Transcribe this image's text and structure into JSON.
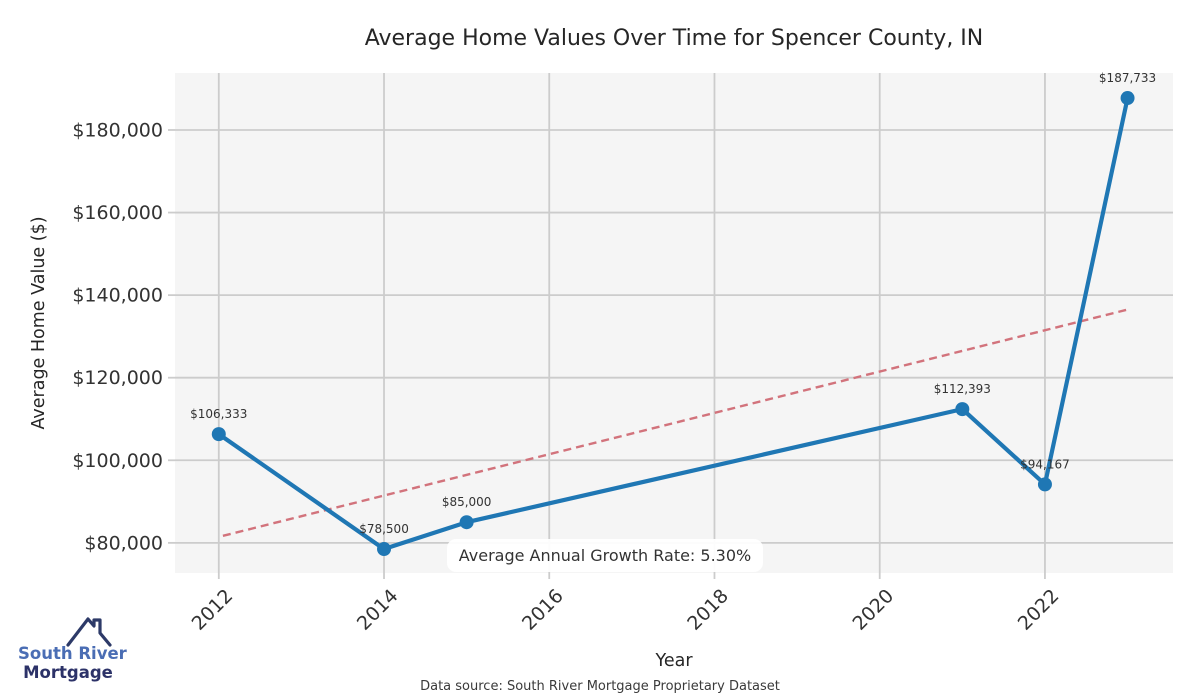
{
  "page": {
    "footer": "Data source: South River Mortgage Proprietary Dataset"
  },
  "logo": {
    "line1": "South River",
    "line2": "Mortgage",
    "icon": "house-roof-icon",
    "colors": {
      "roof": "#2d3a68",
      "line1": "#4a6db4",
      "line2": "#2c3268"
    }
  },
  "chart_data": {
    "type": "line",
    "title": "Average Home Values Over Time for Spencer County, IN",
    "xlabel": "Year",
    "ylabel": "Average Home Value ($)",
    "x": [
      2012,
      2014,
      2015,
      2021,
      2022,
      2023
    ],
    "values": [
      106333,
      78500,
      85000,
      112393,
      94167,
      187733
    ],
    "point_labels": [
      "$106,333",
      "$78,500",
      "$85,000",
      "$112,393",
      "$94,167",
      "$187,733"
    ],
    "xlim": [
      2011.47,
      2023.55
    ],
    "ylim": [
      72700,
      193800
    ],
    "x_ticks": [
      2012,
      2014,
      2016,
      2018,
      2020,
      2022
    ],
    "y_ticks": [
      80000,
      100000,
      120000,
      140000,
      160000,
      180000
    ],
    "y_tick_labels": [
      "$80,000",
      "$100,000",
      "$120,000",
      "$140,000",
      "$160,000",
      "$180,000"
    ],
    "grid": true,
    "legend": "none",
    "trend_line": {
      "style": "dashed",
      "x": [
        2012.05,
        2023.0
      ],
      "values": [
        81700,
        136500
      ]
    },
    "annotation": "Average Annual Growth Rate: 5.30%",
    "colors": {
      "series": "#1f77b4",
      "trend": "#d2737c",
      "plot_background": "#f5f5f5",
      "grid": "#cccccc",
      "tick_text": "#333333",
      "label_text": "#262626"
    }
  }
}
